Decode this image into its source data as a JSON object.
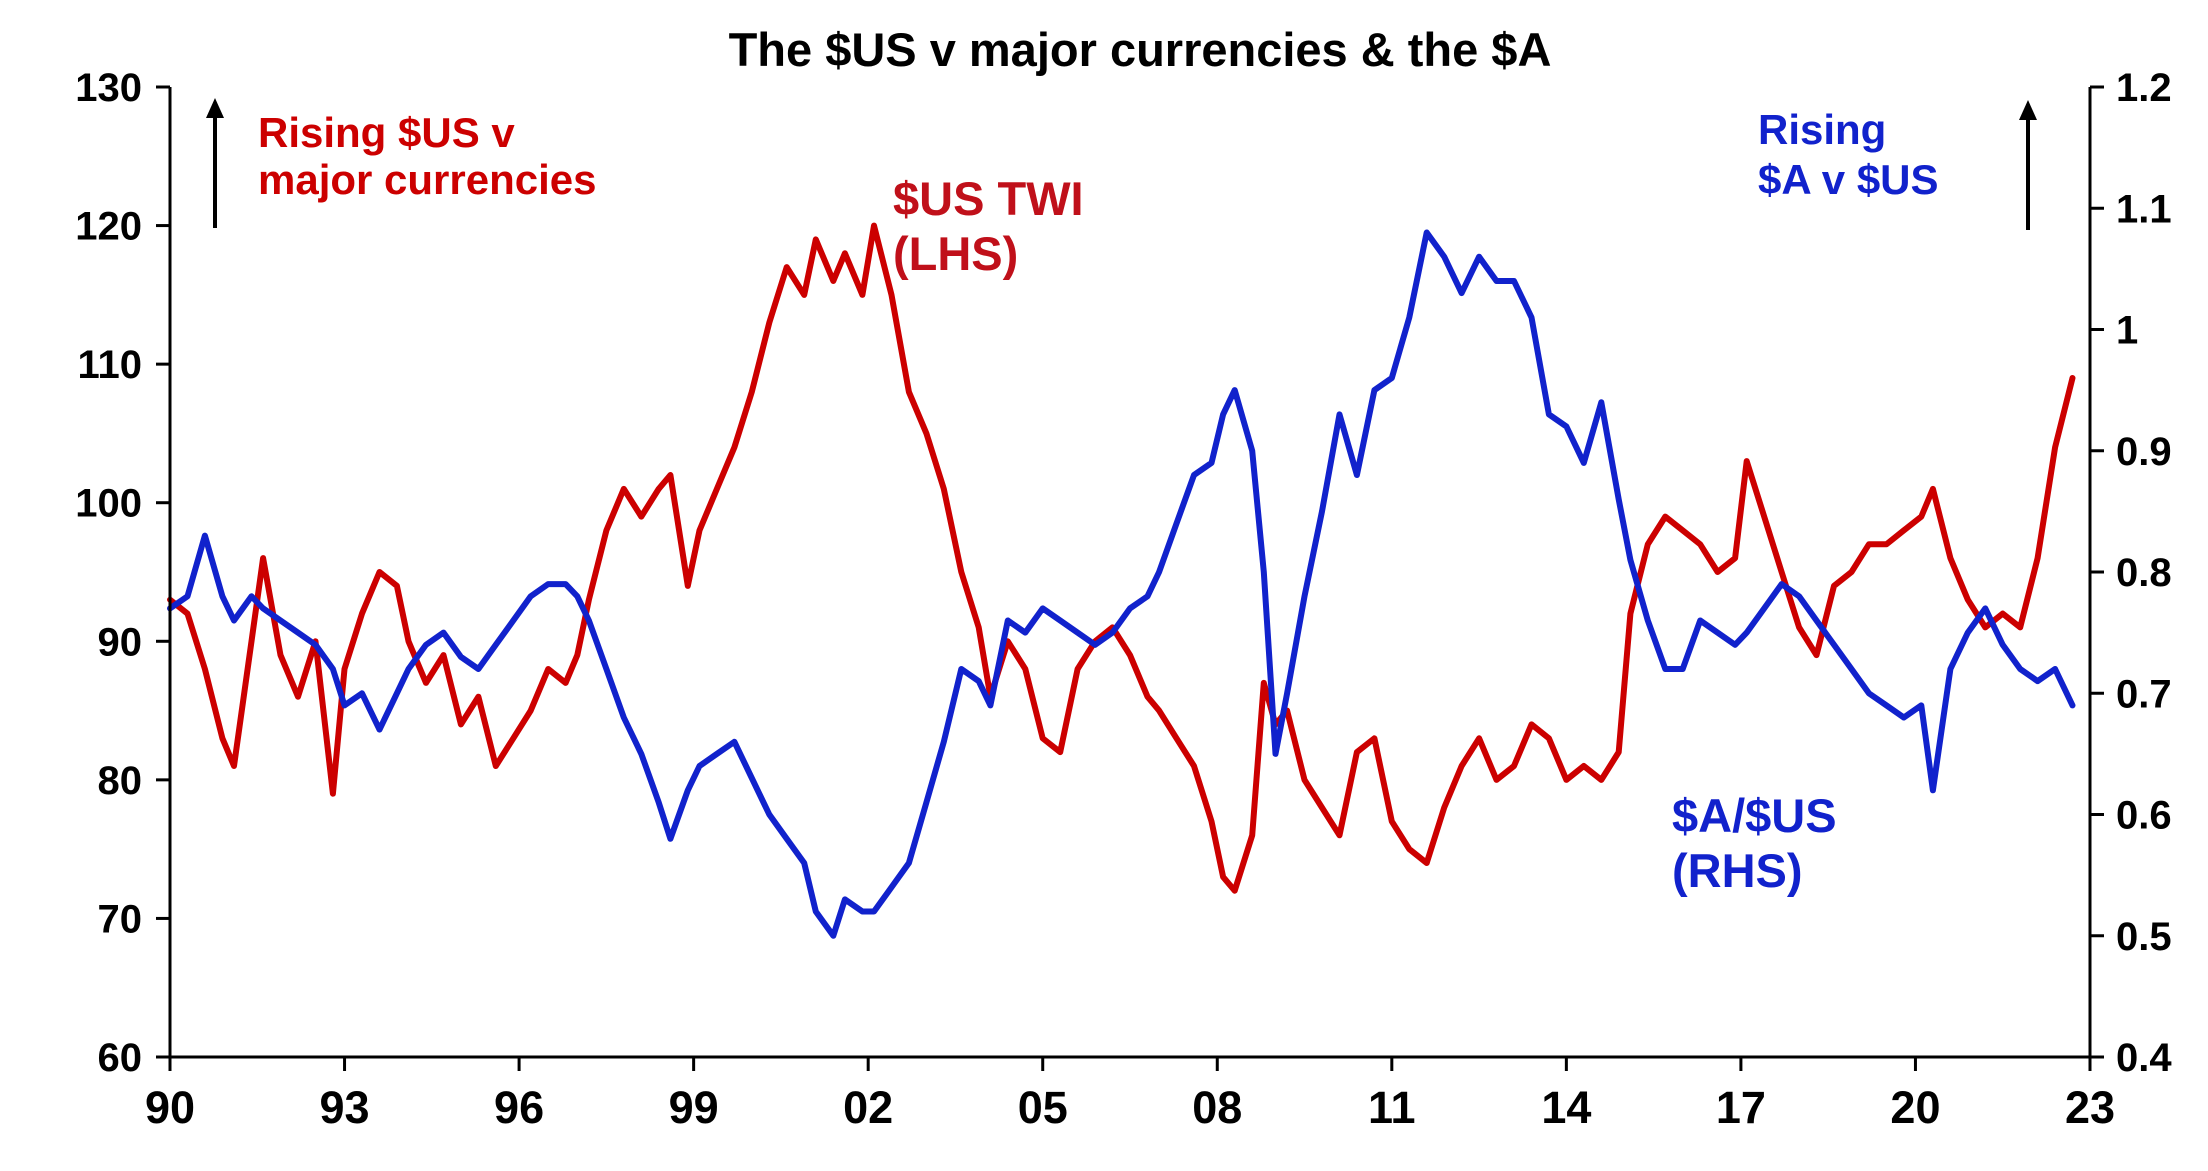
{
  "chart_data": {
    "type": "line",
    "title": "The $US v major currencies & the $A",
    "xlim": [
      1990,
      2023
    ],
    "x_ticks": [
      "90",
      "93",
      "96",
      "99",
      "02",
      "05",
      "08",
      "11",
      "14",
      "17",
      "20",
      "23"
    ],
    "x_tick_values": [
      1990,
      1993,
      1996,
      1999,
      2002,
      2005,
      2008,
      2011,
      2014,
      2017,
      2020,
      2023
    ],
    "ylim_left": [
      60,
      130
    ],
    "y_ticks_left": [
      "60",
      "70",
      "80",
      "90",
      "100",
      "110",
      "120",
      "130"
    ],
    "ylim_right": [
      0.4,
      1.2
    ],
    "y_ticks_right": [
      "0.4",
      "0.5",
      "0.6",
      "0.7",
      "0.8",
      "0.9",
      "1",
      "1.1",
      "1.2"
    ],
    "grid": false,
    "annotations": {
      "left_arrow": [
        "Rising $US v",
        "major currencies"
      ],
      "right_arrow": [
        "Rising",
        "$A v $US"
      ]
    },
    "series": [
      {
        "name": "$US TWI (LHS)",
        "label_lines": [
          "$US TWI",
          "(LHS)"
        ],
        "axis": "left",
        "color": "#cc0000",
        "x": [
          1990.0,
          1990.3,
          1990.6,
          1990.9,
          1991.1,
          1991.4,
          1991.6,
          1991.9,
          1992.2,
          1992.5,
          1992.8,
          1993.0,
          1993.3,
          1993.6,
          1993.9,
          1994.1,
          1994.4,
          1994.7,
          1995.0,
          1995.3,
          1995.6,
          1995.9,
          1996.2,
          1996.5,
          1996.8,
          1997.0,
          1997.2,
          1997.5,
          1997.8,
          1998.1,
          1998.4,
          1998.6,
          1998.9,
          1999.1,
          1999.4,
          1999.7,
          2000.0,
          2000.3,
          2000.6,
          2000.9,
          2001.1,
          2001.4,
          2001.6,
          2001.9,
          2002.1,
          2002.4,
          2002.7,
          2003.0,
          2003.3,
          2003.6,
          2003.9,
          2004.1,
          2004.4,
          2004.7,
          2005.0,
          2005.3,
          2005.6,
          2005.9,
          2006.2,
          2006.5,
          2006.8,
          2007.0,
          2007.3,
          2007.6,
          2007.9,
          2008.1,
          2008.3,
          2008.6,
          2008.8,
          2009.0,
          2009.2,
          2009.5,
          2009.8,
          2010.1,
          2010.4,
          2010.7,
          2011.0,
          2011.3,
          2011.6,
          2011.9,
          2012.2,
          2012.5,
          2012.8,
          2013.1,
          2013.4,
          2013.7,
          2014.0,
          2014.3,
          2014.6,
          2014.9,
          2015.1,
          2015.4,
          2015.7,
          2016.0,
          2016.3,
          2016.6,
          2016.9,
          2017.1,
          2017.4,
          2017.7,
          2018.0,
          2018.3,
          2018.6,
          2018.9,
          2019.2,
          2019.5,
          2019.8,
          2020.1,
          2020.3,
          2020.6,
          2020.9,
          2021.2,
          2021.5,
          2021.8,
          2022.1,
          2022.4,
          2022.7
        ],
        "values": [
          93,
          92,
          88,
          83,
          81,
          90,
          96,
          89,
          86,
          90,
          79,
          88,
          92,
          95,
          94,
          90,
          87,
          89,
          84,
          86,
          81,
          83,
          85,
          88,
          87,
          89,
          93,
          98,
          101,
          99,
          101,
          102,
          94,
          98,
          101,
          104,
          108,
          113,
          117,
          115,
          119,
          116,
          118,
          115,
          120,
          115,
          108,
          105,
          101,
          95,
          91,
          86,
          90,
          88,
          83,
          82,
          88,
          90,
          91,
          89,
          86,
          85,
          83,
          81,
          77,
          73,
          72,
          76,
          87,
          84,
          85,
          80,
          78,
          76,
          82,
          83,
          77,
          75,
          74,
          78,
          81,
          83,
          80,
          81,
          84,
          83,
          80,
          81,
          80,
          82,
          92,
          97,
          99,
          98,
          97,
          95,
          96,
          103,
          99,
          95,
          91,
          89,
          94,
          95,
          97,
          97,
          98,
          99,
          101,
          96,
          93,
          91,
          92,
          91,
          96,
          104,
          109
        ]
      },
      {
        "name": "$A/$US (RHS)",
        "label_lines": [
          "$A/$US",
          "(RHS)"
        ],
        "axis": "right",
        "color": "#1122cc",
        "x": [
          1990.0,
          1990.3,
          1990.6,
          1990.9,
          1991.1,
          1991.4,
          1991.6,
          1991.9,
          1992.2,
          1992.5,
          1992.8,
          1993.0,
          1993.3,
          1993.6,
          1993.9,
          1994.1,
          1994.4,
          1994.7,
          1995.0,
          1995.3,
          1995.6,
          1995.9,
          1996.2,
          1996.5,
          1996.8,
          1997.0,
          1997.2,
          1997.5,
          1997.8,
          1998.1,
          1998.4,
          1998.6,
          1998.9,
          1999.1,
          1999.4,
          1999.7,
          2000.0,
          2000.3,
          2000.6,
          2000.9,
          2001.1,
          2001.4,
          2001.6,
          2001.9,
          2002.1,
          2002.4,
          2002.7,
          2003.0,
          2003.3,
          2003.6,
          2003.9,
          2004.1,
          2004.4,
          2004.7,
          2005.0,
          2005.3,
          2005.6,
          2005.9,
          2006.2,
          2006.5,
          2006.8,
          2007.0,
          2007.3,
          2007.6,
          2007.9,
          2008.1,
          2008.3,
          2008.6,
          2008.8,
          2009.0,
          2009.2,
          2009.5,
          2009.8,
          2010.1,
          2010.4,
          2010.7,
          2011.0,
          2011.3,
          2011.6,
          2011.9,
          2012.2,
          2012.5,
          2012.8,
          2013.1,
          2013.4,
          2013.7,
          2014.0,
          2014.3,
          2014.6,
          2014.9,
          2015.1,
          2015.4,
          2015.7,
          2016.0,
          2016.3,
          2016.6,
          2016.9,
          2017.1,
          2017.4,
          2017.7,
          2018.0,
          2018.3,
          2018.6,
          2018.9,
          2019.2,
          2019.5,
          2019.8,
          2020.1,
          2020.3,
          2020.6,
          2020.9,
          2021.2,
          2021.5,
          2021.8,
          2022.1,
          2022.4,
          2022.7
        ],
        "values": [
          0.77,
          0.78,
          0.83,
          0.78,
          0.76,
          0.78,
          0.77,
          0.76,
          0.75,
          0.74,
          0.72,
          0.69,
          0.7,
          0.67,
          0.7,
          0.72,
          0.74,
          0.75,
          0.73,
          0.72,
          0.74,
          0.76,
          0.78,
          0.79,
          0.79,
          0.78,
          0.76,
          0.72,
          0.68,
          0.65,
          0.61,
          0.58,
          0.62,
          0.64,
          0.65,
          0.66,
          0.63,
          0.6,
          0.58,
          0.56,
          0.52,
          0.5,
          0.53,
          0.52,
          0.52,
          0.54,
          0.56,
          0.61,
          0.66,
          0.72,
          0.71,
          0.69,
          0.76,
          0.75,
          0.77,
          0.76,
          0.75,
          0.74,
          0.75,
          0.77,
          0.78,
          0.8,
          0.84,
          0.88,
          0.89,
          0.93,
          0.95,
          0.9,
          0.8,
          0.65,
          0.7,
          0.78,
          0.85,
          0.93,
          0.88,
          0.95,
          0.96,
          1.01,
          1.08,
          1.06,
          1.03,
          1.06,
          1.04,
          1.04,
          1.01,
          0.93,
          0.92,
          0.89,
          0.94,
          0.86,
          0.81,
          0.76,
          0.72,
          0.72,
          0.76,
          0.75,
          0.74,
          0.75,
          0.77,
          0.79,
          0.78,
          0.76,
          0.74,
          0.72,
          0.7,
          0.69,
          0.68,
          0.69,
          0.62,
          0.72,
          0.75,
          0.77,
          0.74,
          0.72,
          0.71,
          0.72,
          0.69
        ]
      }
    ]
  }
}
